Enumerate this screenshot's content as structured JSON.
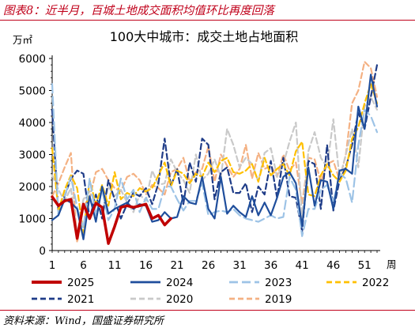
{
  "caption": "图表8：近半月，百城土地成交面积均值环比再度回落",
  "source": "资料来源：Wind，国盛证券研究所",
  "chart_data": {
    "type": "line",
    "title": "100大中城市：成交土地占地面积",
    "ylabel": "万㎡",
    "xlabel": "周",
    "ylim": [
      0,
      6000
    ],
    "xlim": [
      1,
      53
    ],
    "yticks": [
      0,
      1000,
      2000,
      3000,
      4000,
      5000,
      6000
    ],
    "xticks": [
      1,
      6,
      11,
      16,
      21,
      26,
      31,
      36,
      41,
      46,
      51
    ],
    "legend": "bottom",
    "grid": false,
    "series": [
      {
        "name": "2025",
        "color": "#c00000",
        "dash": "solid",
        "width": 3.5,
        "values": [
          1680,
          1400,
          1550,
          1600,
          380,
          1450,
          1000,
          1480,
          1350,
          220,
          750,
          1350,
          1400,
          1350,
          1400,
          1450,
          1000,
          1100,
          800,
          1000
        ]
      },
      {
        "name": "2024",
        "color": "#1f4e9c",
        "dash": "solid",
        "width": 2.2,
        "values": [
          950,
          1100,
          1600,
          1500,
          1300,
          350,
          1700,
          900,
          2000,
          1150,
          1300,
          1400,
          1500,
          1300,
          1450,
          1400,
          900,
          950,
          1200,
          1000,
          1050,
          1700,
          1500,
          1450,
          2300,
          1300,
          1000,
          2300,
          1150,
          1400,
          1200,
          1050,
          1700,
          1100,
          1500,
          1100,
          1650,
          2300,
          2450,
          2100,
          750,
          2600,
          1400,
          2200,
          2150,
          1300,
          2500,
          2550,
          2400,
          4500,
          3800,
          5500,
          4500
        ]
      },
      {
        "name": "2023",
        "color": "#9dc3e6",
        "dash": "long",
        "width": 2.2,
        "values": [
          5200,
          1100,
          1700,
          2300,
          1350,
          700,
          2250,
          1100,
          1900,
          950,
          1300,
          2250,
          1600,
          1900,
          1200,
          1650,
          1300,
          1300,
          2000,
          2000,
          1600,
          1250,
          1550,
          1550,
          2100,
          1100,
          1200,
          1250,
          1200,
          1300,
          1100,
          1000,
          950,
          900,
          1000,
          1100,
          1000,
          1050,
          2300,
          1900,
          450,
          1300,
          1300,
          1900,
          2050,
          1500,
          2400,
          2250,
          1500,
          3300,
          4400,
          4200,
          3700
        ]
      },
      {
        "name": "2022",
        "color": "#ffc000",
        "dash": "dash",
        "width": 2.2,
        "values": [
          3200,
          1250,
          1900,
          2350,
          1950,
          550,
          2200,
          1450,
          2050,
          1400,
          2450,
          1600,
          1800,
          1700,
          1950,
          1850,
          1950,
          2350,
          2750,
          2000,
          2500,
          2400,
          2100,
          2400,
          2300,
          2750,
          2450,
          2800,
          2900,
          2450,
          2400,
          2500,
          2700,
          2150,
          2900,
          2350,
          2550,
          2700,
          2350,
          3100,
          3400,
          1750,
          1700,
          2350,
          2700,
          2350,
          2150,
          2500,
          3500,
          3850,
          4600,
          5200,
          4600
        ]
      },
      {
        "name": "2021",
        "color": "#1f3c88",
        "dash": "dash",
        "width": 2.2,
        "values": [
          4400,
          1150,
          1700,
          2250,
          2500,
          2400,
          1000,
          1750,
          1000,
          2200,
          1600,
          1000,
          1450,
          1800,
          1700,
          1950,
          1450,
          2100,
          3500,
          2000,
          2550,
          1450,
          2750,
          2150,
          3500,
          3300,
          1600,
          2450,
          2600,
          1800,
          1800,
          2100,
          1200,
          2000,
          1750,
          2800,
          1650,
          2900,
          1700,
          1650,
          600,
          2800,
          2700,
          1300,
          3300,
          1250,
          2200,
          2600,
          3300,
          4300,
          3800,
          4800,
          5800
        ]
      },
      {
        "name": "2020",
        "color": "#c9c9c9",
        "dash": "dash",
        "width": 2.2,
        "values": [
          2350,
          1900,
          1550,
          1950,
          500,
          1600,
          1850,
          1500,
          1150,
          2000,
          1700,
          1900,
          1500,
          1200,
          1750,
          1550,
          2500,
          2050,
          2100,
          2850,
          2450,
          2200,
          1800,
          3000,
          2200,
          2400,
          2850,
          2300,
          3800,
          3300,
          2600,
          2900,
          2700,
          2150,
          3050,
          3200,
          2300,
          2700,
          3400,
          4000,
          1000,
          3100,
          3700,
          2900,
          2600,
          4100,
          2250,
          3000,
          3800,
          2600,
          4500,
          4800,
          4400
        ]
      },
      {
        "name": "2019",
        "color": "#f4b183",
        "dash": "dash",
        "width": 2.2,
        "values": [
          1700,
          2100,
          2600,
          3050,
          250,
          1400,
          1650,
          2450,
          2550,
          2200,
          1950,
          1850,
          2300,
          2400,
          2200,
          1750,
          2050,
          1950,
          1750,
          2450,
          2550,
          2900,
          2150,
          2450,
          2550,
          3250,
          2150,
          3000,
          2650,
          2300,
          2550,
          3300,
          2250,
          3050,
          2550,
          2650,
          2300,
          3000,
          2500,
          2750,
          1450,
          2900,
          2850,
          2150,
          2700,
          2800,
          2200,
          3000,
          4600,
          5000,
          5900,
          5700,
          4800
        ]
      }
    ]
  }
}
